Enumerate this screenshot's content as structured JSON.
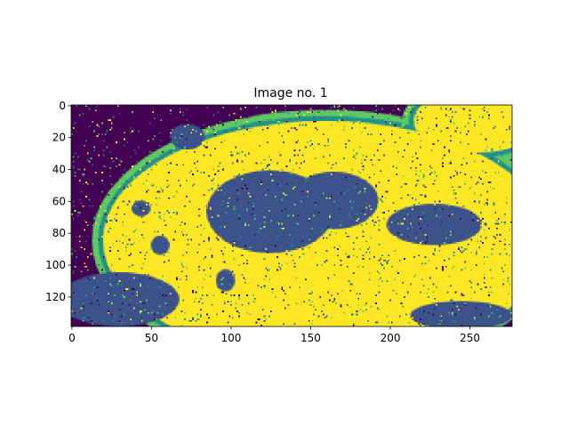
{
  "chart_data": {
    "type": "heatmap",
    "title": "Image no. 1",
    "xlabel": "",
    "ylabel": "",
    "image_size": [
      277,
      139
    ],
    "xlim": [
      -0.5,
      276.5
    ],
    "ylim": [
      138.5,
      -0.5
    ],
    "x_ticks": [
      0,
      50,
      100,
      150,
      200,
      250
    ],
    "y_ticks": [
      0,
      20,
      40,
      60,
      80,
      100,
      120
    ],
    "colormap": "viridis",
    "class_colors": [
      "#440154",
      "#3b528b",
      "#21918c",
      "#5ec962",
      "#fde725"
    ],
    "grid": false,
    "regions": [
      {
        "class": 4,
        "shape": "ellipse",
        "cx": 160,
        "cy": 85,
        "rx": 140,
        "ry": 75
      },
      {
        "class": 4,
        "shape": "ellipse",
        "cx": 255,
        "cy": 10,
        "rx": 40,
        "ry": 20
      },
      {
        "class": 1,
        "shape": "ellipse",
        "cx": 125,
        "cy": 67,
        "rx": 40,
        "ry": 26
      },
      {
        "class": 1,
        "shape": "ellipse",
        "cx": 165,
        "cy": 60,
        "rx": 28,
        "ry": 18
      },
      {
        "class": 1,
        "shape": "ellipse",
        "cx": 73,
        "cy": 20,
        "rx": 11,
        "ry": 8
      },
      {
        "class": 1,
        "shape": "ellipse",
        "cx": 228,
        "cy": 75,
        "rx": 30,
        "ry": 13
      },
      {
        "class": 1,
        "shape": "ellipse",
        "cx": 56,
        "cy": 88,
        "rx": 6,
        "ry": 6
      },
      {
        "class": 1,
        "shape": "ellipse",
        "cx": 44,
        "cy": 65,
        "rx": 6,
        "ry": 5
      },
      {
        "class": 1,
        "shape": "ellipse",
        "cx": 97,
        "cy": 110,
        "rx": 6,
        "ry": 7
      },
      {
        "class": 1,
        "shape": "ellipse",
        "cx": 30,
        "cy": 122,
        "rx": 38,
        "ry": 17
      },
      {
        "class": 1,
        "shape": "ellipse",
        "cx": 245,
        "cy": 132,
        "rx": 32,
        "ry": 9
      }
    ]
  }
}
